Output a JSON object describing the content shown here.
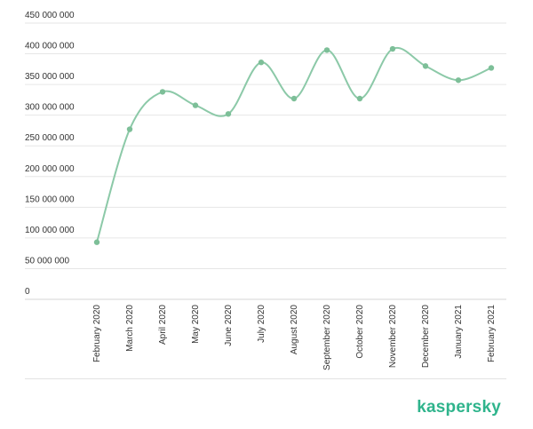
{
  "chart_data": {
    "type": "line",
    "categories": [
      "February 2020",
      "March 2020",
      "April 2020",
      "May 2020",
      "June 2020",
      "July 2020",
      "August 2020",
      "September 2020",
      "October 2020",
      "November 2020",
      "December 2020",
      "January 2021",
      "February 2021"
    ],
    "series": [
      {
        "values": [
          93000000,
          277000000,
          338000000,
          316000000,
          302000000,
          386000000,
          327000000,
          406000000,
          327000000,
          408000000,
          380000000,
          357000000,
          377000000
        ]
      }
    ],
    "y_ticks": [
      "0",
      "50 000 000",
      "100 000 000",
      "150 000 000",
      "200 000 000",
      "250 000 000",
      "300 000 000",
      "350 000 000",
      "400 000 000",
      "450 000 000"
    ],
    "ylim": [
      0,
      450000000
    ],
    "grid": true,
    "line_color": "#8cc9a8",
    "point_color": "#7dbf98"
  },
  "brand": {
    "name": "kaspersky",
    "color": "#2fb48c"
  }
}
